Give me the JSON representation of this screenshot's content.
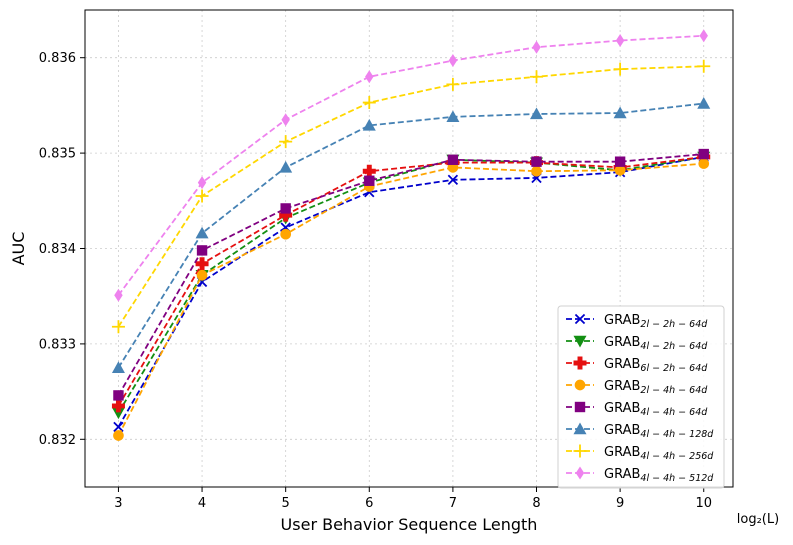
{
  "chart_data": {
    "type": "line",
    "title": "",
    "xlabel": "User Behavior Sequence Length",
    "ylabel": "AUC",
    "x_unit_note": "log₂(L)",
    "x": [
      3,
      4,
      5,
      6,
      7,
      8,
      9,
      10
    ],
    "xlim": [
      2.6,
      10.35
    ],
    "ylim": [
      0.8315,
      0.8365
    ],
    "yticks": [
      "0.832",
      "0.833",
      "0.834",
      "0.835",
      "0.836"
    ],
    "ytick_values": [
      0.832,
      0.833,
      0.834,
      0.835,
      0.836
    ],
    "grid": true,
    "legend_position": "lower-right",
    "series": [
      {
        "name_main": "GRAB",
        "name_sub": "2l − 2h − 64d",
        "color": "#0000cc",
        "marker": "x",
        "values": [
          0.83213,
          0.83365,
          0.83422,
          0.83459,
          0.83472,
          0.83474,
          0.8348,
          0.83496
        ]
      },
      {
        "name_main": "GRAB",
        "name_sub": "4l − 2h − 64d",
        "color": "#138f13",
        "marker": "triangle-down",
        "values": [
          0.83228,
          0.83372,
          0.83432,
          0.83469,
          0.83493,
          0.8349,
          0.83482,
          0.83496
        ]
      },
      {
        "name_main": "GRAB",
        "name_sub": "6l − 2h − 64d",
        "color": "#e51010",
        "marker": "plus",
        "values": [
          0.83235,
          0.83384,
          0.83435,
          0.83481,
          0.8349,
          0.8349,
          0.83485,
          0.83496
        ]
      },
      {
        "name_main": "GRAB",
        "name_sub": "2l − 4h − 64d",
        "color": "#ffa500",
        "marker": "circle",
        "values": [
          0.83204,
          0.83372,
          0.83415,
          0.83465,
          0.83485,
          0.83481,
          0.83482,
          0.83489
        ]
      },
      {
        "name_main": "GRAB",
        "name_sub": "4l − 4h − 64d",
        "color": "#800080",
        "marker": "square",
        "values": [
          0.83246,
          0.83398,
          0.83442,
          0.83471,
          0.83493,
          0.83491,
          0.83491,
          0.83499
        ]
      },
      {
        "name_main": "GRAB",
        "name_sub": "4l − 4h − 128d",
        "color": "#4682b4",
        "marker": "triangle-up",
        "values": [
          0.83275,
          0.83416,
          0.83485,
          0.83529,
          0.83538,
          0.83541,
          0.83542,
          0.83552
        ]
      },
      {
        "name_main": "GRAB",
        "name_sub": "4l − 4h − 256d",
        "color": "#ffd700",
        "marker": "plus-thin",
        "values": [
          0.83318,
          0.83455,
          0.83512,
          0.83553,
          0.83572,
          0.8358,
          0.83588,
          0.83591
        ]
      },
      {
        "name_main": "GRAB",
        "name_sub": "4l − 4h − 512d",
        "color": "#ee82ee",
        "marker": "diamond",
        "values": [
          0.83351,
          0.83469,
          0.83535,
          0.8358,
          0.83597,
          0.83611,
          0.83618,
          0.83623
        ]
      }
    ]
  }
}
